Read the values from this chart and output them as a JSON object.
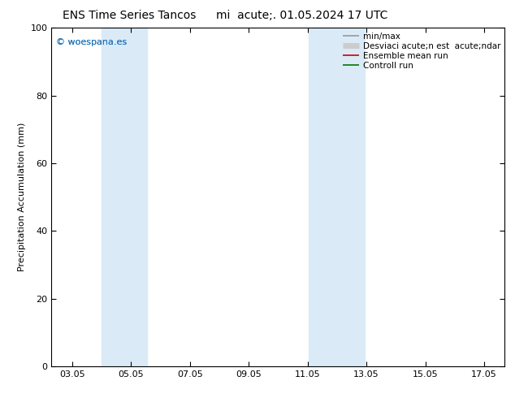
{
  "title_left": "ENS Time Series Tancos",
  "title_right": "mi  acute;. 01.05.2024 17 UTC",
  "ylabel": "Precipitation Accumulation (mm)",
  "ylim": [
    0,
    100
  ],
  "yticks": [
    0,
    20,
    40,
    60,
    80,
    100
  ],
  "xtick_labels": [
    "03.05",
    "05.05",
    "07.05",
    "09.05",
    "11.05",
    "13.05",
    "15.05",
    "17.05"
  ],
  "xtick_positions": [
    3,
    5,
    7,
    9,
    11,
    13,
    15,
    17
  ],
  "xmin": 2.3,
  "xmax": 17.7,
  "shaded_regions": [
    {
      "xmin": 4.0,
      "xmax": 5.55,
      "color": "#daeaf7",
      "alpha": 1.0
    },
    {
      "xmin": 11.05,
      "xmax": 12.95,
      "color": "#daeaf7",
      "alpha": 1.0
    }
  ],
  "watermark": "© woespana.es",
  "watermark_color": "#2277bb",
  "legend_items": [
    {
      "label": "min/max",
      "color": "#999999",
      "lw": 1.2
    },
    {
      "label": "Desviaci acute;n est  acute;ndar",
      "color": "#cccccc",
      "lw": 5
    },
    {
      "label": "Ensemble mean run",
      "color": "#cc0000",
      "lw": 1.2
    },
    {
      "label": "Controll run",
      "color": "#007700",
      "lw": 1.2
    }
  ],
  "bg_color": "white",
  "plot_bg_color": "white",
  "title_fontsize": 10,
  "axis_fontsize": 8,
  "tick_fontsize": 8,
  "legend_fontsize": 7.5,
  "watermark_fontsize": 8
}
